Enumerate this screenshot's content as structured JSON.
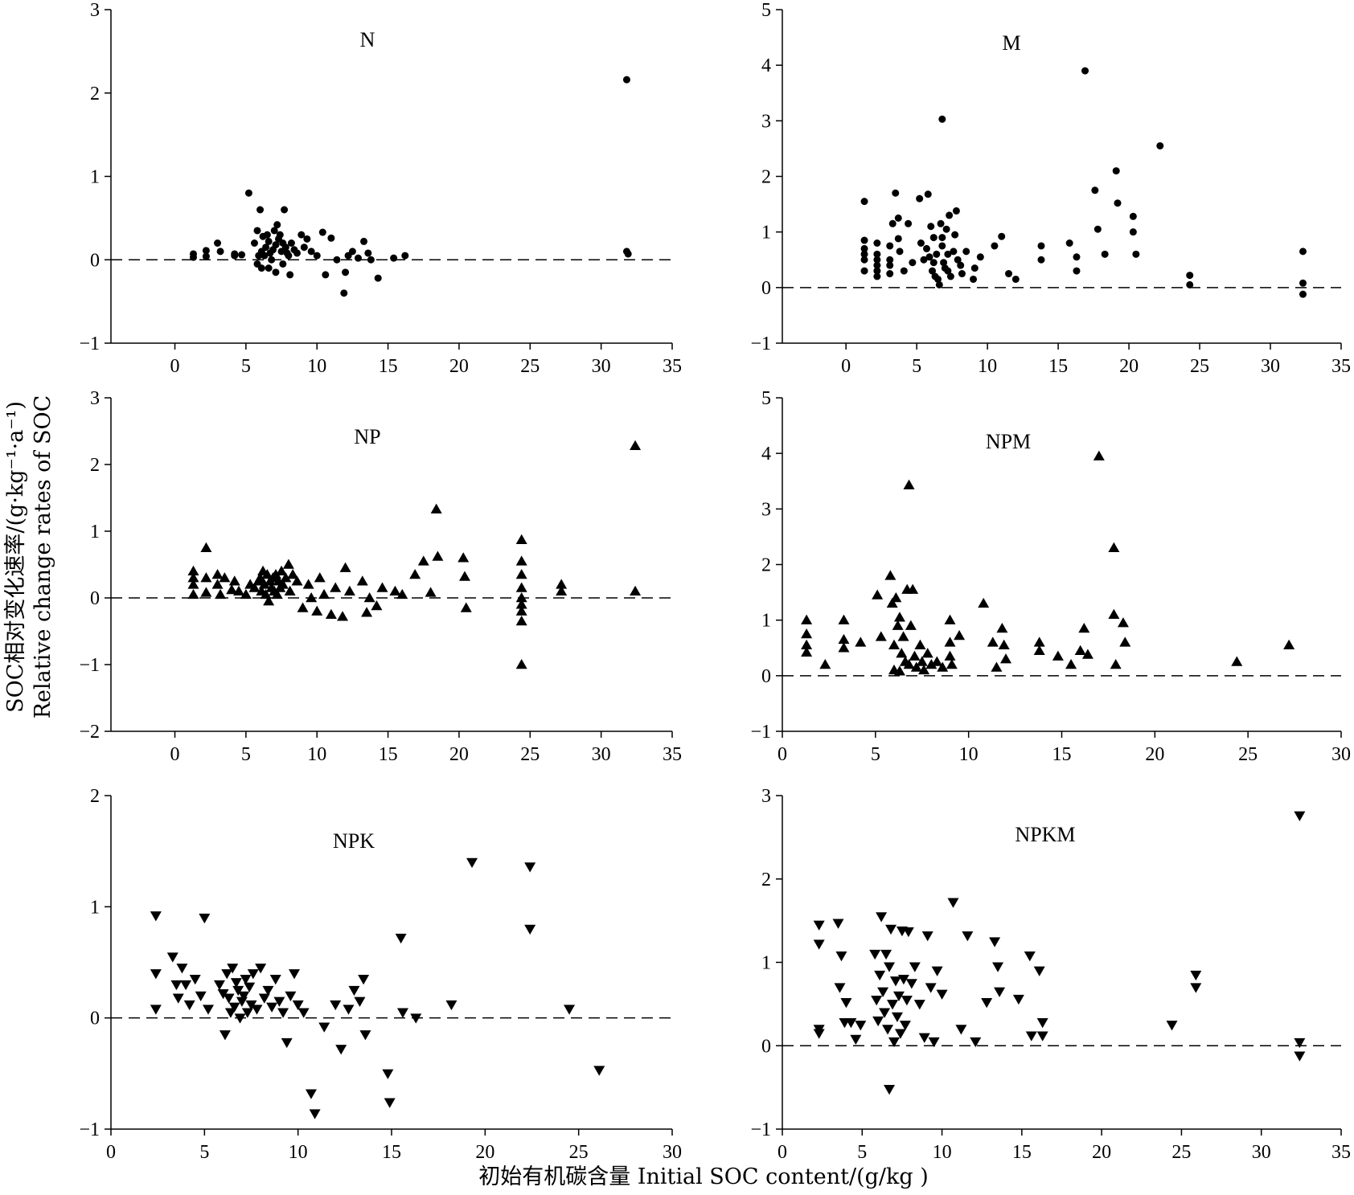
{
  "figure": {
    "ylabel_cn": "SOC相对变化速率/(g·kg⁻¹·a⁻¹)",
    "ylabel_en": "Relative change rates of SOC",
    "xlabel": "初始有机碳含量 Initial SOC content/(g/kg )"
  },
  "chart_data": [
    {
      "type": "scatter",
      "title": "N",
      "marker": "circle",
      "xlim": [
        -4.5,
        35
      ],
      "ylim": [
        -1,
        3
      ],
      "xticks": [
        0,
        5,
        10,
        15,
        20,
        25,
        30,
        35
      ],
      "yticks": [
        -1,
        0,
        1,
        2,
        3
      ],
      "xlabel": "",
      "ylabel": "",
      "x": [
        1.3,
        1.3,
        2.2,
        2.2,
        3.0,
        3.2,
        4.2,
        4.2,
        4.7,
        5.2,
        5.6,
        5.8,
        5.9,
        6.0,
        6.1,
        6.2,
        6.3,
        6.4,
        6.5,
        6.6,
        6.7,
        6.8,
        6.9,
        7.0,
        7.1,
        7.2,
        7.3,
        7.4,
        7.5,
        7.6,
        7.7,
        7.8,
        7.9,
        8.0,
        8.2,
        8.4,
        8.6,
        8.9,
        9.1,
        9.3,
        9.6,
        10.0,
        10.4,
        10.6,
        11.0,
        11.4,
        11.9,
        12.0,
        12.2,
        12.5,
        12.9,
        13.3,
        13.6,
        13.8,
        14.3,
        15.4,
        16.2,
        5.8,
        6.1,
        6.6,
        7.1,
        7.6,
        8.1,
        31.8,
        31.8,
        31.9
      ],
      "y": [
        0.07,
        0.03,
        0.11,
        0.04,
        0.2,
        0.1,
        0.07,
        0.05,
        0.06,
        0.8,
        0.2,
        0.35,
        0.05,
        0.6,
        0.1,
        0.28,
        0.05,
        0.15,
        0.3,
        0.22,
        0.08,
        0.0,
        0.12,
        0.35,
        0.18,
        0.42,
        0.25,
        0.3,
        0.1,
        0.2,
        0.6,
        0.15,
        0.08,
        0.05,
        0.2,
        0.12,
        0.08,
        0.3,
        0.15,
        0.25,
        0.1,
        0.05,
        0.33,
        -0.18,
        0.26,
        0.0,
        -0.4,
        -0.15,
        0.05,
        0.1,
        0.02,
        0.22,
        0.08,
        0.0,
        -0.22,
        0.02,
        0.05,
        -0.05,
        -0.1,
        -0.1,
        -0.15,
        -0.05,
        -0.18,
        2.16,
        0.1,
        0.07
      ]
    },
    {
      "type": "scatter",
      "title": "M",
      "marker": "circle",
      "xlim": [
        -4.5,
        35
      ],
      "ylim": [
        -1,
        5
      ],
      "xticks": [
        0,
        5,
        10,
        15,
        20,
        25,
        30,
        35
      ],
      "yticks": [
        -1,
        0,
        1,
        2,
        3,
        4,
        5
      ],
      "xlabel": "",
      "ylabel": "",
      "x": [
        1.3,
        1.3,
        1.3,
        1.3,
        1.3,
        1.3,
        2.2,
        2.2,
        2.2,
        2.2,
        2.2,
        2.2,
        3.1,
        3.1,
        3.1,
        3.1,
        3.3,
        3.5,
        3.7,
        3.8,
        4.1,
        4.4,
        4.7,
        5.2,
        5.3,
        5.5,
        5.7,
        5.8,
        5.9,
        6.0,
        6.1,
        6.2,
        6.3,
        6.4,
        6.5,
        6.6,
        6.7,
        6.8,
        6.9,
        7.0,
        7.1,
        7.2,
        7.3,
        7.4,
        7.6,
        7.8,
        7.9,
        8.2,
        8.5,
        9.0,
        9.1,
        9.5,
        10.5,
        11.0,
        11.5,
        12.0,
        13.8,
        13.8,
        15.8,
        16.3,
        16.3,
        17.6,
        17.8,
        18.3,
        19.1,
        19.2,
        20.3,
        20.3,
        20.5,
        22.2,
        24.3,
        24.3,
        32.3,
        32.3,
        32.3,
        6.2,
        6.8,
        7.2,
        7.7,
        8.1,
        16.9,
        3.7,
        6.8
      ],
      "y": [
        1.55,
        0.85,
        0.7,
        0.6,
        0.5,
        0.3,
        0.8,
        0.6,
        0.5,
        0.4,
        0.3,
        0.2,
        0.75,
        0.5,
        0.4,
        0.25,
        1.15,
        1.7,
        1.25,
        0.65,
        0.3,
        1.15,
        0.45,
        1.6,
        0.8,
        0.5,
        0.7,
        1.68,
        0.55,
        1.1,
        0.3,
        0.45,
        0.2,
        0.6,
        0.15,
        0.05,
        1.15,
        0.9,
        0.45,
        0.35,
        1.05,
        0.3,
        1.3,
        0.2,
        0.65,
        1.38,
        0.5,
        0.25,
        0.65,
        0.15,
        0.35,
        0.55,
        0.75,
        0.92,
        0.25,
        0.15,
        0.75,
        0.5,
        0.8,
        0.3,
        0.55,
        1.75,
        1.05,
        0.6,
        2.1,
        1.52,
        1.28,
        1.0,
        0.6,
        2.55,
        0.22,
        0.05,
        0.65,
        0.08,
        -0.12,
        0.9,
        0.75,
        0.6,
        0.95,
        0.4,
        3.9,
        0.88,
        3.03
      ]
    },
    {
      "type": "scatter",
      "title": "NP",
      "marker": "triangle-up",
      "xlim": [
        -4.5,
        35
      ],
      "ylim": [
        -2,
        3
      ],
      "xticks": [
        0,
        5,
        10,
        15,
        20,
        25,
        30,
        35
      ],
      "yticks": [
        -2,
        -1,
        0,
        1,
        2,
        3
      ],
      "xlabel": "",
      "ylabel": "",
      "x": [
        1.3,
        1.3,
        1.3,
        1.3,
        2.2,
        2.2,
        2.2,
        3.0,
        3.0,
        3.2,
        3.5,
        4.0,
        4.2,
        4.5,
        5.0,
        5.3,
        5.6,
        5.9,
        6.0,
        6.1,
        6.2,
        6.3,
        6.4,
        6.5,
        6.6,
        6.7,
        6.8,
        6.9,
        7.0,
        7.1,
        7.2,
        7.3,
        7.4,
        7.5,
        7.6,
        7.8,
        8.0,
        8.1,
        8.3,
        8.6,
        9.0,
        9.4,
        9.6,
        10.0,
        10.2,
        10.5,
        11.0,
        11.3,
        11.8,
        12.0,
        12.3,
        13.2,
        13.5,
        13.7,
        14.2,
        14.6,
        15.5,
        16.0,
        16.9,
        17.5,
        18.0,
        18.4,
        18.5,
        20.3,
        20.4,
        20.5,
        24.4,
        24.4,
        24.4,
        24.4,
        24.4,
        24.4,
        24.4,
        24.4,
        24.4,
        27.2,
        27.2,
        32.4,
        32.4
      ],
      "y": [
        0.4,
        0.3,
        0.2,
        0.05,
        0.75,
        0.3,
        0.08,
        0.35,
        0.2,
        0.05,
        0.3,
        0.12,
        0.25,
        0.1,
        0.05,
        0.2,
        0.15,
        0.25,
        0.3,
        0.1,
        0.4,
        0.2,
        0.05,
        0.35,
        -0.05,
        0.25,
        0.15,
        0.3,
        0.1,
        0.35,
        0.05,
        0.25,
        0.15,
        0.4,
        0.2,
        0.3,
        0.5,
        0.1,
        0.35,
        0.25,
        -0.15,
        0.2,
        0.0,
        -0.2,
        0.3,
        0.05,
        -0.25,
        0.15,
        -0.28,
        0.45,
        0.1,
        0.25,
        -0.22,
        0.0,
        -0.12,
        0.15,
        0.1,
        0.05,
        0.35,
        0.55,
        0.08,
        1.33,
        0.62,
        0.6,
        0.32,
        -0.15,
        0.87,
        0.55,
        0.35,
        0.15,
        0.0,
        -0.2,
        -0.35,
        -1.0,
        -0.1,
        0.2,
        0.1,
        2.28,
        0.1
      ]
    },
    {
      "type": "scatter",
      "title": "NPM",
      "marker": "triangle-up",
      "xlim": [
        0,
        30
      ],
      "ylim": [
        -1,
        5
      ],
      "xticks": [
        0,
        5,
        10,
        15,
        20,
        25,
        30
      ],
      "yticks": [
        -1,
        0,
        1,
        2,
        3,
        4,
        5
      ],
      "xlabel": "",
      "ylabel": "",
      "x": [
        1.3,
        1.3,
        1.3,
        1.3,
        2.3,
        3.3,
        3.3,
        3.3,
        4.2,
        5.1,
        5.3,
        5.8,
        5.9,
        6.0,
        6.0,
        6.1,
        6.2,
        6.3,
        6.4,
        6.5,
        6.6,
        6.7,
        6.8,
        6.9,
        7.0,
        7.1,
        7.2,
        7.4,
        7.5,
        7.6,
        7.8,
        8.0,
        8.3,
        8.6,
        9.0,
        9.0,
        9.0,
        9.1,
        9.5,
        10.8,
        11.3,
        11.5,
        11.8,
        11.9,
        12.0,
        13.8,
        13.8,
        14.8,
        15.5,
        16.0,
        16.2,
        16.4,
        17.8,
        17.8,
        17.9,
        18.3,
        18.4,
        24.4,
        27.2,
        6.8,
        17.0,
        6.3
      ],
      "y": [
        1.0,
        0.75,
        0.55,
        0.42,
        0.2,
        1.0,
        0.65,
        0.5,
        0.6,
        1.45,
        0.7,
        1.8,
        1.3,
        0.55,
        0.1,
        1.4,
        0.9,
        1.05,
        0.4,
        0.7,
        0.25,
        1.55,
        0.2,
        0.9,
        1.55,
        0.35,
        0.15,
        0.55,
        0.25,
        0.1,
        0.4,
        0.2,
        0.25,
        0.15,
        1.0,
        0.6,
        0.35,
        0.2,
        0.72,
        1.3,
        0.6,
        0.15,
        0.85,
        0.55,
        0.3,
        0.6,
        0.45,
        0.35,
        0.2,
        0.45,
        0.85,
        0.38,
        2.3,
        1.1,
        0.2,
        0.95,
        0.6,
        0.25,
        0.55,
        3.43,
        3.95,
        0.08
      ]
    },
    {
      "type": "scatter",
      "title": "NPK",
      "marker": "triangle-down",
      "xlim": [
        0,
        30
      ],
      "ylim": [
        -1,
        2
      ],
      "xticks": [
        0,
        5,
        10,
        15,
        20,
        25,
        30
      ],
      "yticks": [
        -1,
        0,
        1,
        2
      ],
      "xlabel": "",
      "ylabel": "",
      "x": [
        2.4,
        2.4,
        2.4,
        3.3,
        3.5,
        3.6,
        3.8,
        4.0,
        4.2,
        4.5,
        4.8,
        5.0,
        5.2,
        5.8,
        6.0,
        6.1,
        6.2,
        6.3,
        6.4,
        6.5,
        6.6,
        6.7,
        6.8,
        6.9,
        7.0,
        7.1,
        7.2,
        7.3,
        7.4,
        7.5,
        7.6,
        7.8,
        8.0,
        8.2,
        8.4,
        8.6,
        8.8,
        9.0,
        9.2,
        9.4,
        9.6,
        9.8,
        10.0,
        10.3,
        10.7,
        10.9,
        11.4,
        12.0,
        12.3,
        12.7,
        13.0,
        13.3,
        13.5,
        13.6,
        14.8,
        14.9,
        15.5,
        15.6,
        16.3,
        18.2,
        19.3,
        22.4,
        22.4,
        24.5,
        26.1
      ],
      "y": [
        0.92,
        0.4,
        0.08,
        0.55,
        0.3,
        0.18,
        0.45,
        0.3,
        0.12,
        0.35,
        0.2,
        0.9,
        0.08,
        0.3,
        0.22,
        -0.15,
        0.4,
        0.18,
        0.05,
        0.45,
        0.1,
        0.32,
        0.25,
        0.0,
        0.15,
        0.2,
        0.35,
        0.05,
        0.28,
        0.12,
        0.4,
        0.08,
        0.45,
        0.18,
        0.25,
        0.1,
        0.35,
        0.15,
        0.05,
        -0.22,
        0.2,
        0.4,
        0.12,
        0.05,
        -0.68,
        -0.86,
        -0.08,
        0.12,
        -0.28,
        0.08,
        0.25,
        0.15,
        0.35,
        -0.15,
        -0.5,
        -0.76,
        0.72,
        0.05,
        0.0,
        0.12,
        1.4,
        1.36,
        0.8,
        0.08,
        -0.47
      ]
    },
    {
      "type": "scatter",
      "title": "NPKM",
      "marker": "triangle-down",
      "xlim": [
        0,
        35
      ],
      "ylim": [
        -1,
        3
      ],
      "xticks": [
        0,
        5,
        10,
        15,
        20,
        25,
        30,
        35
      ],
      "yticks": [
        -1,
        0,
        1,
        2,
        3
      ],
      "xlabel": "",
      "ylabel": "",
      "x": [
        2.3,
        2.3,
        2.3,
        2.3,
        3.5,
        3.6,
        3.7,
        3.9,
        4.0,
        4.3,
        4.6,
        4.9,
        5.8,
        5.9,
        6.0,
        6.1,
        6.2,
        6.3,
        6.4,
        6.5,
        6.6,
        6.7,
        6.8,
        6.9,
        7.0,
        7.1,
        7.2,
        7.3,
        7.4,
        7.5,
        7.6,
        7.7,
        7.8,
        7.9,
        8.1,
        8.3,
        8.6,
        8.9,
        9.1,
        9.3,
        9.5,
        9.7,
        10.0,
        10.7,
        11.2,
        11.6,
        12.1,
        12.8,
        13.3,
        13.5,
        13.6,
        14.8,
        15.5,
        15.6,
        16.1,
        16.3,
        16.3,
        24.4,
        25.9,
        25.9,
        32.4,
        32.4,
        32.4,
        6.7
      ],
      "y": [
        1.45,
        1.22,
        0.2,
        0.15,
        1.47,
        0.7,
        1.08,
        0.28,
        0.52,
        0.28,
        0.08,
        0.25,
        1.1,
        0.55,
        0.3,
        0.85,
        1.55,
        0.65,
        0.4,
        1.1,
        0.2,
        0.95,
        1.4,
        0.5,
        0.05,
        0.78,
        0.35,
        0.6,
        0.15,
        1.38,
        0.8,
        0.25,
        0.55,
        1.37,
        0.75,
        0.95,
        0.5,
        0.1,
        1.32,
        0.7,
        0.05,
        0.9,
        0.62,
        1.72,
        0.2,
        1.32,
        0.05,
        0.52,
        1.25,
        0.95,
        0.65,
        0.56,
        1.08,
        0.12,
        0.9,
        0.28,
        0.12,
        0.25,
        0.85,
        0.7,
        2.76,
        0.04,
        -0.12,
        -0.52
      ]
    }
  ]
}
